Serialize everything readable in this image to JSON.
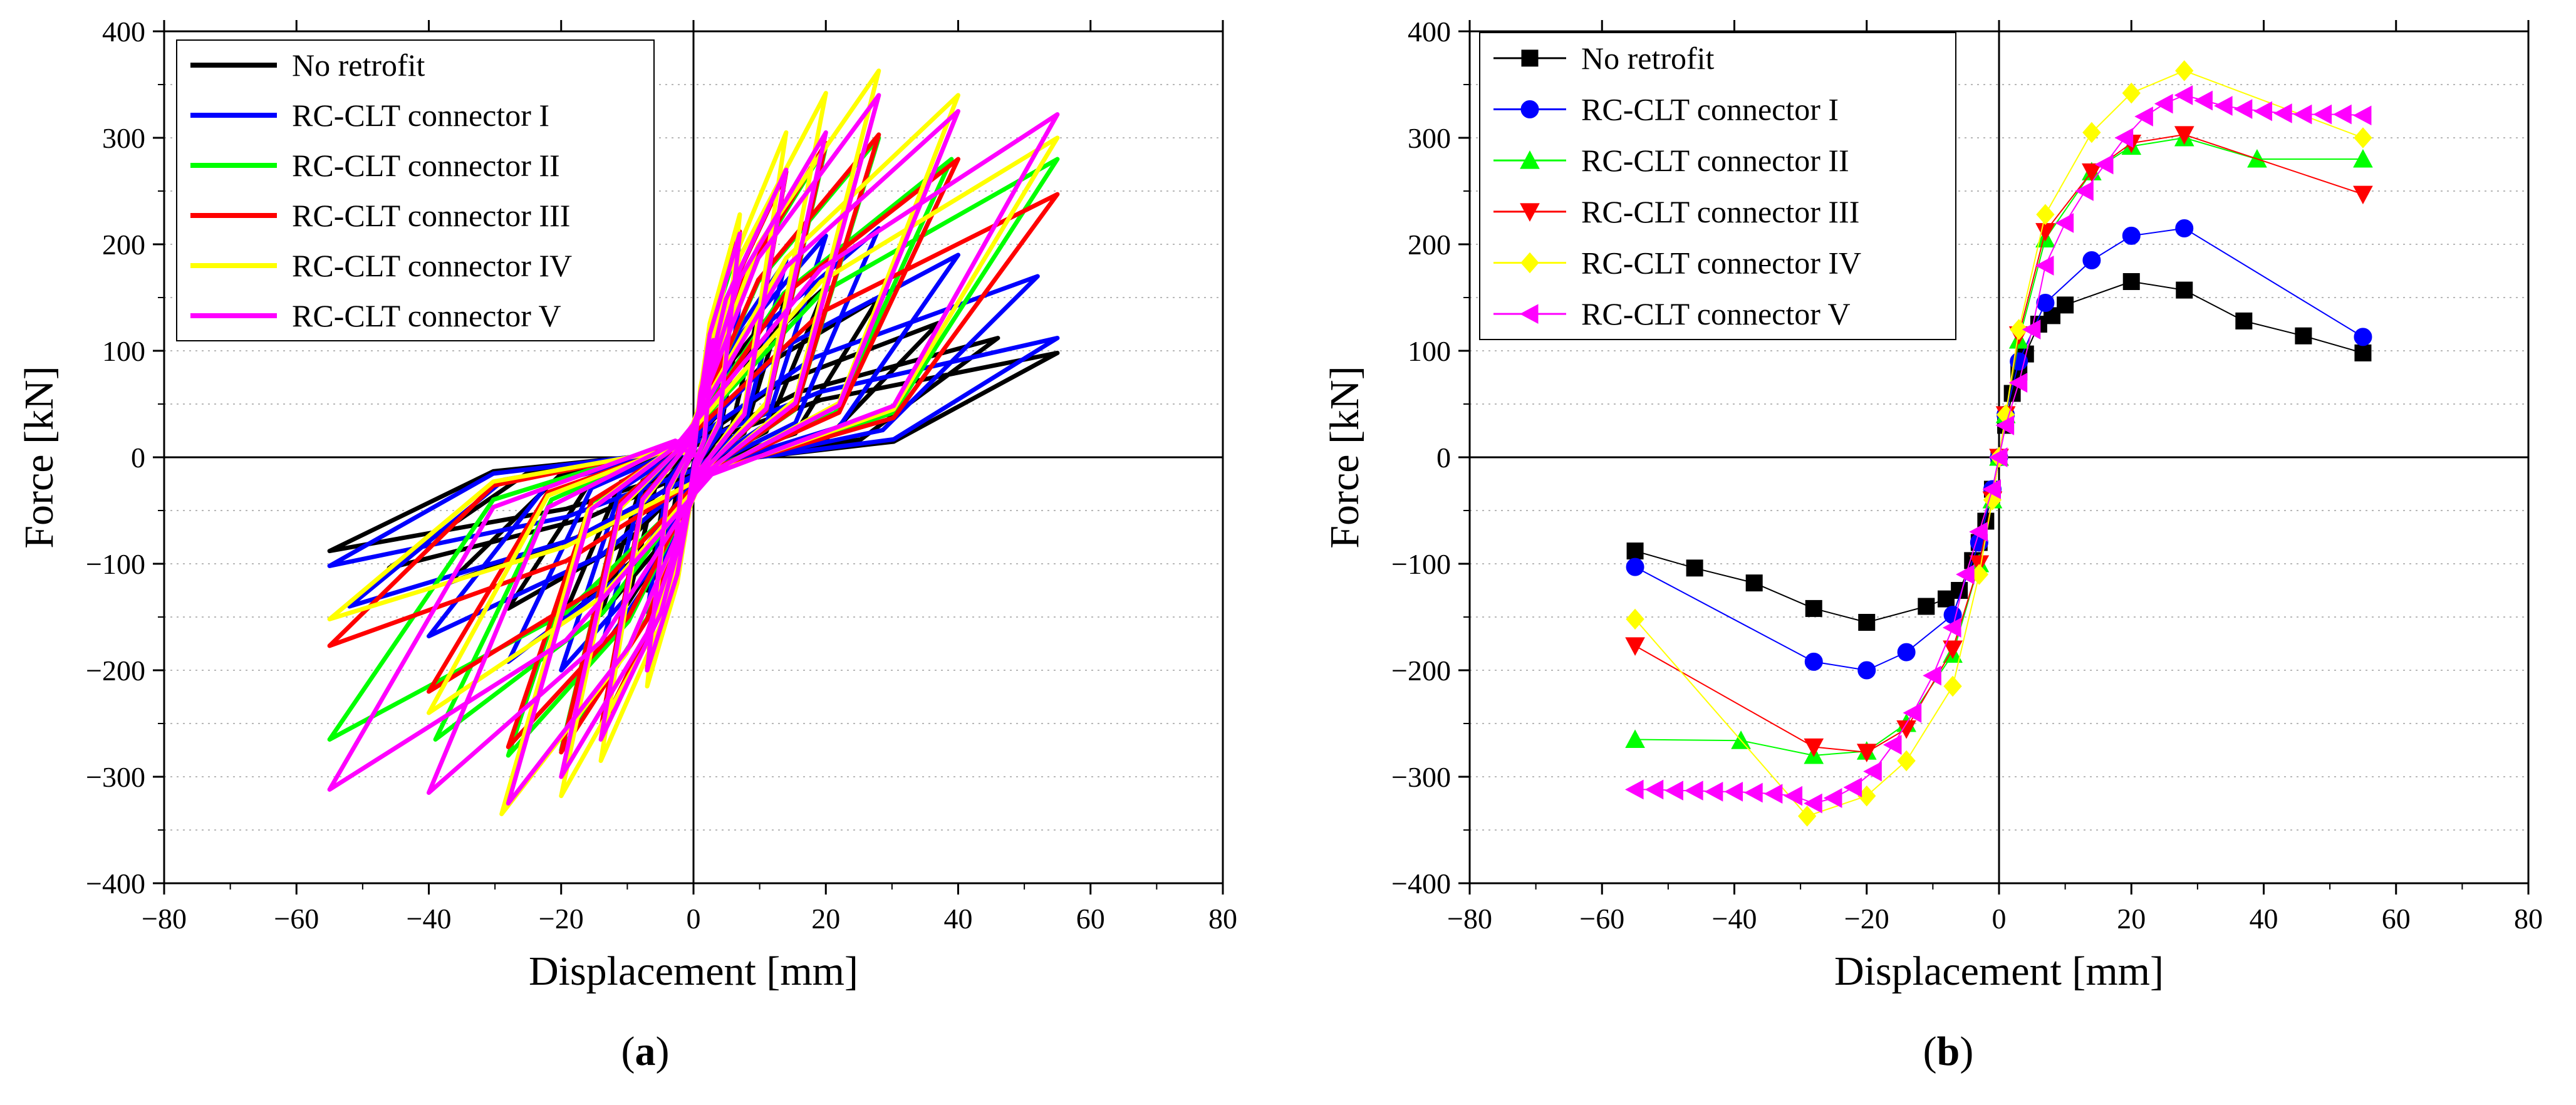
{
  "chart_data": [
    {
      "type": "line",
      "panel_label": "a",
      "xlabel": "Displacement [mm]",
      "ylabel": "Force [kN]",
      "xlim": [
        -80,
        80
      ],
      "ylim": [
        -400,
        400
      ],
      "xticks": [
        -80,
        -60,
        -40,
        -20,
        0,
        20,
        40,
        60,
        80
      ],
      "yticks": [
        -400,
        -300,
        -200,
        -100,
        0,
        100,
        200,
        300,
        400
      ],
      "grid": "horizontal dotted",
      "legend_position": "top-left",
      "series": [
        {
          "name": "No retrofit",
          "color": "#000000",
          "envelope_pos": [
            [
              0,
              0
            ],
            [
              2,
              60
            ],
            [
              4,
              97
            ],
            [
              7,
              125
            ],
            [
              10,
              140
            ],
            [
              14,
              152
            ],
            [
              20,
              160
            ],
            [
              28,
              150
            ],
            [
              37,
              126
            ],
            [
              46,
              112
            ],
            [
              55,
              98
            ]
          ],
          "envelope_neg": [
            [
              0,
              0
            ],
            [
              -2,
              -55
            ],
            [
              -4,
              -95
            ],
            [
              -7,
              -125
            ],
            [
              -10,
              -138
            ],
            [
              -14,
              -148
            ],
            [
              -20,
              -155
            ],
            [
              -28,
              -142
            ],
            [
              -37,
              -118
            ],
            [
              -46,
              -104
            ],
            [
              -55,
              -88
            ]
          ]
        },
        {
          "name": "RC-CLT connector I",
          "color": "#0000ff",
          "envelope_pos": [
            [
              0,
              0
            ],
            [
              3,
              80
            ],
            [
              7,
              145
            ],
            [
              14,
              185
            ],
            [
              20,
              208
            ],
            [
              28,
              215
            ],
            [
              40,
              190
            ],
            [
              52,
              170
            ],
            [
              55,
              112
            ]
          ],
          "envelope_neg": [
            [
              0,
              0
            ],
            [
              -3,
              -75
            ],
            [
              -7,
              -145
            ],
            [
              -14,
              -182
            ],
            [
              -20,
              -200
            ],
            [
              -28,
              -192
            ],
            [
              -40,
              -168
            ],
            [
              -52,
              -140
            ],
            [
              -55,
              -102
            ]
          ]
        },
        {
          "name": "RC-CLT connector II",
          "color": "#00ff00",
          "envelope_pos": [
            [
              0,
              0
            ],
            [
              3,
              110
            ],
            [
              7,
              205
            ],
            [
              14,
              268
            ],
            [
              20,
              292
            ],
            [
              28,
              300
            ],
            [
              39,
              280
            ],
            [
              55,
              280
            ]
          ],
          "envelope_neg": [
            [
              0,
              0
            ],
            [
              -3,
              -100
            ],
            [
              -7,
              -200
            ],
            [
              -14,
              -255
            ],
            [
              -20,
              -275
            ],
            [
              -28,
              -280
            ],
            [
              -39,
              -265
            ],
            [
              -55,
              -265
            ]
          ]
        },
        {
          "name": "RC-CLT connector III",
          "color": "#ff0000",
          "envelope_pos": [
            [
              0,
              0
            ],
            [
              3,
              115
            ],
            [
              7,
              212
            ],
            [
              14,
              268
            ],
            [
              20,
              295
            ],
            [
              28,
              303
            ],
            [
              40,
              280
            ],
            [
              55,
              247
            ]
          ],
          "envelope_neg": [
            [
              0,
              0
            ],
            [
              -3,
              -105
            ],
            [
              -7,
              -198
            ],
            [
              -14,
              -255
            ],
            [
              -20,
              -277
            ],
            [
              -28,
              -272
            ],
            [
              -40,
              -220
            ],
            [
              -55,
              -177
            ]
          ]
        },
        {
          "name": "RC-CLT connector IV",
          "color": "#ffff00",
          "envelope_pos": [
            [
              0,
              0
            ],
            [
              3,
              120
            ],
            [
              7,
              228
            ],
            [
              14,
              305
            ],
            [
              20,
              342
            ],
            [
              28,
              363
            ],
            [
              40,
              340
            ],
            [
              55,
              300
            ]
          ],
          "envelope_neg": [
            [
              0,
              0
            ],
            [
              -3,
              -110
            ],
            [
              -7,
              -215
            ],
            [
              -14,
              -285
            ],
            [
              -20,
              -318
            ],
            [
              -29,
              -335
            ],
            [
              -40,
              -240
            ],
            [
              -55,
              -152
            ]
          ]
        },
        {
          "name": "RC-CLT connector V",
          "color": "#ff00ff",
          "envelope_pos": [
            [
              0,
              0
            ],
            [
              3,
              110
            ],
            [
              7,
              210
            ],
            [
              14,
              270
            ],
            [
              20,
              305
            ],
            [
              28,
              340
            ],
            [
              40,
              325
            ],
            [
              55,
              322
            ]
          ],
          "envelope_neg": [
            [
              0,
              0
            ],
            [
              -3,
              -100
            ],
            [
              -7,
              -200
            ],
            [
              -14,
              -265
            ],
            [
              -20,
              -300
            ],
            [
              -28,
              -325
            ],
            [
              -40,
              -315
            ],
            [
              -55,
              -312
            ]
          ]
        }
      ]
    },
    {
      "type": "line",
      "panel_label": "b",
      "xlabel": "Displacement [mm]",
      "ylabel": "Force [kN]",
      "xlim": [
        -80,
        80
      ],
      "ylim": [
        -400,
        400
      ],
      "xticks": [
        -80,
        -60,
        -40,
        -20,
        0,
        20,
        40,
        60,
        80
      ],
      "yticks": [
        -400,
        -300,
        -200,
        -100,
        0,
        100,
        200,
        300,
        400
      ],
      "grid": "horizontal dotted",
      "legend_position": "top-left",
      "series": [
        {
          "name": "No retrofit",
          "color": "#000000",
          "marker": "square",
          "x": [
            -55,
            -46,
            -37,
            -28,
            -20,
            -11,
            -8,
            -6,
            -4,
            -3,
            -2,
            -1,
            0,
            1,
            2,
            3,
            4,
            6,
            8,
            10,
            20,
            28,
            37,
            46,
            55
          ],
          "y": [
            -88,
            -104,
            -118,
            -142,
            -155,
            -140,
            -133,
            -125,
            -97,
            -80,
            -60,
            -30,
            0,
            30,
            60,
            80,
            97,
            125,
            133,
            143,
            165,
            157,
            128,
            114,
            98
          ]
        },
        {
          "name": "RC-CLT connector I",
          "color": "#0000ff",
          "marker": "circle",
          "x": [
            -55,
            -28,
            -20,
            -14,
            -7,
            -3,
            -1,
            0,
            1,
            3,
            7,
            14,
            20,
            28,
            55
          ],
          "y": [
            -103,
            -192,
            -200,
            -183,
            -148,
            -80,
            -30,
            0,
            40,
            90,
            145,
            185,
            208,
            215,
            113
          ]
        },
        {
          "name": "RC-CLT connector II",
          "color": "#00ff00",
          "marker": "triangle-up",
          "x": [
            -55,
            -39,
            -28,
            -20,
            -14,
            -7,
            -3,
            -1,
            0,
            1,
            3,
            7,
            14,
            20,
            28,
            39,
            55
          ],
          "y": [
            -265,
            -266,
            -280,
            -276,
            -250,
            -185,
            -100,
            -40,
            0,
            40,
            110,
            205,
            268,
            292,
            300,
            280,
            280
          ]
        },
        {
          "name": "RC-CLT connector III",
          "color": "#ff0000",
          "marker": "triangle-down",
          "x": [
            -55,
            -28,
            -20,
            -14,
            -7,
            -3,
            -1,
            0,
            1,
            3,
            7,
            14,
            20,
            28,
            55
          ],
          "y": [
            -177,
            -272,
            -277,
            -255,
            -180,
            -100,
            -40,
            0,
            40,
            115,
            212,
            268,
            295,
            303,
            247
          ]
        },
        {
          "name": "RC-CLT connector IV",
          "color": "#ffff00",
          "marker": "diamond",
          "x": [
            -55,
            -29,
            -20,
            -14,
            -7,
            -3,
            -1,
            0,
            1,
            3,
            7,
            14,
            20,
            28,
            55
          ],
          "y": [
            -152,
            -337,
            -318,
            -285,
            -215,
            -110,
            -40,
            0,
            40,
            120,
            228,
            305,
            342,
            363,
            300
          ]
        },
        {
          "name": "RC-CLT connector V",
          "color": "#ff00ff",
          "marker": "triangle-left",
          "x": [
            -55,
            -52,
            -49,
            -46,
            -43,
            -40,
            -37,
            -34,
            -31,
            -28,
            -25,
            -22,
            -19,
            -16,
            -13,
            -10,
            -7,
            -5,
            -3,
            -1,
            0,
            1,
            3,
            5,
            7,
            10,
            13,
            16,
            19,
            22,
            25,
            28,
            31,
            34,
            37,
            40,
            43,
            46,
            49,
            52,
            55
          ],
          "y": [
            -312,
            -312,
            -313,
            -313,
            -314,
            -314,
            -315,
            -316,
            -318,
            -325,
            -320,
            -310,
            -295,
            -270,
            -240,
            -205,
            -160,
            -110,
            -70,
            -30,
            0,
            30,
            70,
            120,
            180,
            220,
            250,
            275,
            300,
            320,
            332,
            340,
            335,
            330,
            327,
            325,
            323,
            322,
            322,
            322,
            321
          ]
        }
      ]
    }
  ]
}
